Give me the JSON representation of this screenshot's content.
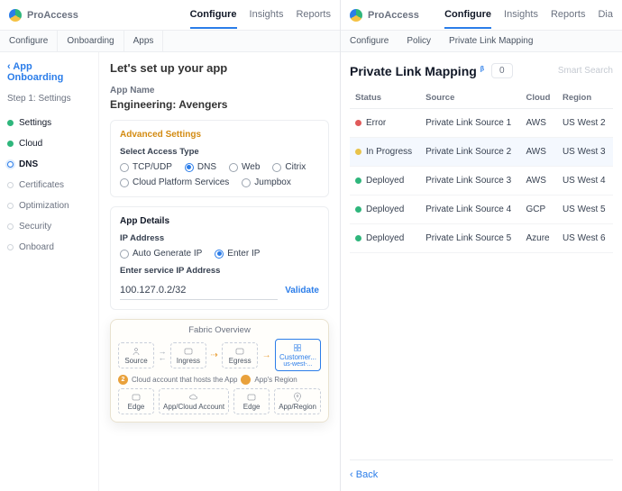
{
  "brand": "ProAccess",
  "header_tabs": [
    "Configure",
    "Insights",
    "Reports"
  ],
  "header_tabs_right_extra": "Dia",
  "left": {
    "subnav": [
      "Configure",
      "Onboarding",
      "Apps"
    ],
    "back": "App Onboarding",
    "step_heading": "Step 1: Settings",
    "steps": [
      {
        "label": "Settings",
        "state": "done"
      },
      {
        "label": "Cloud",
        "state": "done"
      },
      {
        "label": "DNS",
        "state": "current"
      },
      {
        "label": "Certificates",
        "state": ""
      },
      {
        "label": "Optimization",
        "state": ""
      },
      {
        "label": "Security",
        "state": ""
      },
      {
        "label": "Onboard",
        "state": ""
      }
    ],
    "title": "Let's set up your app",
    "app_name_label": "App Name",
    "app_name_value": "Engineering: Avengers",
    "advanced": {
      "title": "Advanced Settings",
      "access_type_label": "Select Access Type",
      "options": [
        "TCP/UDP",
        "DNS",
        "Web",
        "Citrix",
        "Cloud Platform Services",
        "Jumpbox"
      ],
      "selected": "DNS"
    },
    "app_details": {
      "title": "App Details",
      "ip_label": "IP Address",
      "ip_options": [
        "Auto Generate IP",
        "Enter IP"
      ],
      "ip_selected": "Enter IP",
      "service_ip_label": "Enter service IP Address",
      "service_ip_value": "100.127.0.2/32",
      "validate": "Validate"
    },
    "fabric": {
      "title": "Fabric Overview",
      "nodes_top": [
        "Source",
        "Ingress",
        "Egress"
      ],
      "customer_label": "Customer...",
      "customer_sub": "us-west-...",
      "note_num": "2",
      "note_a": "Cloud account that hosts the App",
      "note_b": "App's Region",
      "nodes_bottom": [
        "Edge",
        "App/Cloud Account",
        "Edge",
        "App/Region"
      ]
    }
  },
  "right": {
    "subnav": [
      "Configure",
      "Policy",
      "Private Link Mapping"
    ],
    "title": "Private Link Mapping",
    "beta": "β",
    "count": "0",
    "search_placeholder": "Smart Search",
    "columns": [
      "Status",
      "Source",
      "Cloud",
      "Region"
    ],
    "status_colors": {
      "Error": "#e05a5a",
      "In Progress": "#e9c34a",
      "Deployed": "#2fb67c"
    },
    "rows": [
      {
        "status": "Error",
        "source": "Private Link Source 1",
        "cloud": "AWS",
        "region": "US West 2",
        "hl": false
      },
      {
        "status": "In Progress",
        "source": "Private Link Source 2",
        "cloud": "AWS",
        "region": "US West 3",
        "hl": true
      },
      {
        "status": "Deployed",
        "source": "Private Link Source 3",
        "cloud": "AWS",
        "region": "US West 4",
        "hl": false
      },
      {
        "status": "Deployed",
        "source": "Private Link Source 4",
        "cloud": "GCP",
        "region": "US West 5",
        "hl": false
      },
      {
        "status": "Deployed",
        "source": "Private Link Source 5",
        "cloud": "Azure",
        "region": "US West 6",
        "hl": false
      }
    ],
    "back": "Back"
  }
}
